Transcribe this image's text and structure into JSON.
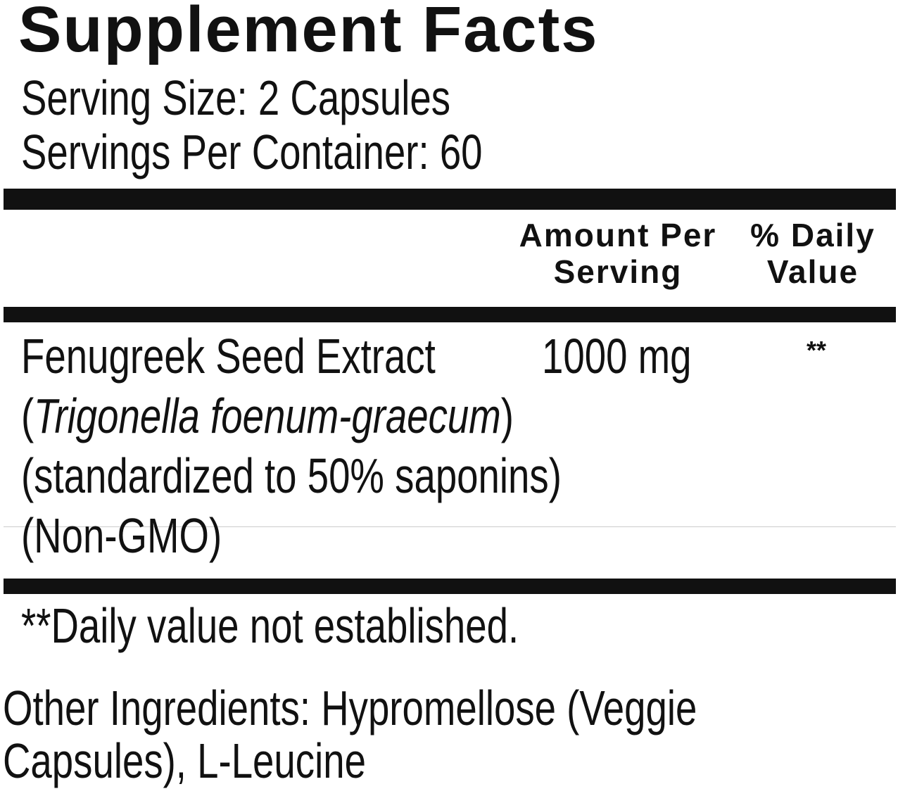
{
  "title": "Supplement Facts",
  "serving_size": "Serving Size: 2 Capsules",
  "servings_per_container": "Servings Per Container: 60",
  "columns": {
    "amount_line1": "Amount Per",
    "amount_line2": "Serving",
    "daily_line1": "% Daily",
    "daily_line2": "Value"
  },
  "ingredient": {
    "name": "Fenugreek Seed Extract",
    "amount": "1000 mg",
    "daily_value": "**",
    "latin_open": "(",
    "latin_name": "Trigonella foenum-graecum",
    "latin_close": ")",
    "standardization": "(standardized to 50% saponins)",
    "non_gmo": "(Non-GMO)"
  },
  "footnote": "**Daily value not established.",
  "other_ingredients": {
    "line1": "Other Ingredients: Hypromellose (Veggie",
    "line2": "Capsules), L-Leucine"
  }
}
